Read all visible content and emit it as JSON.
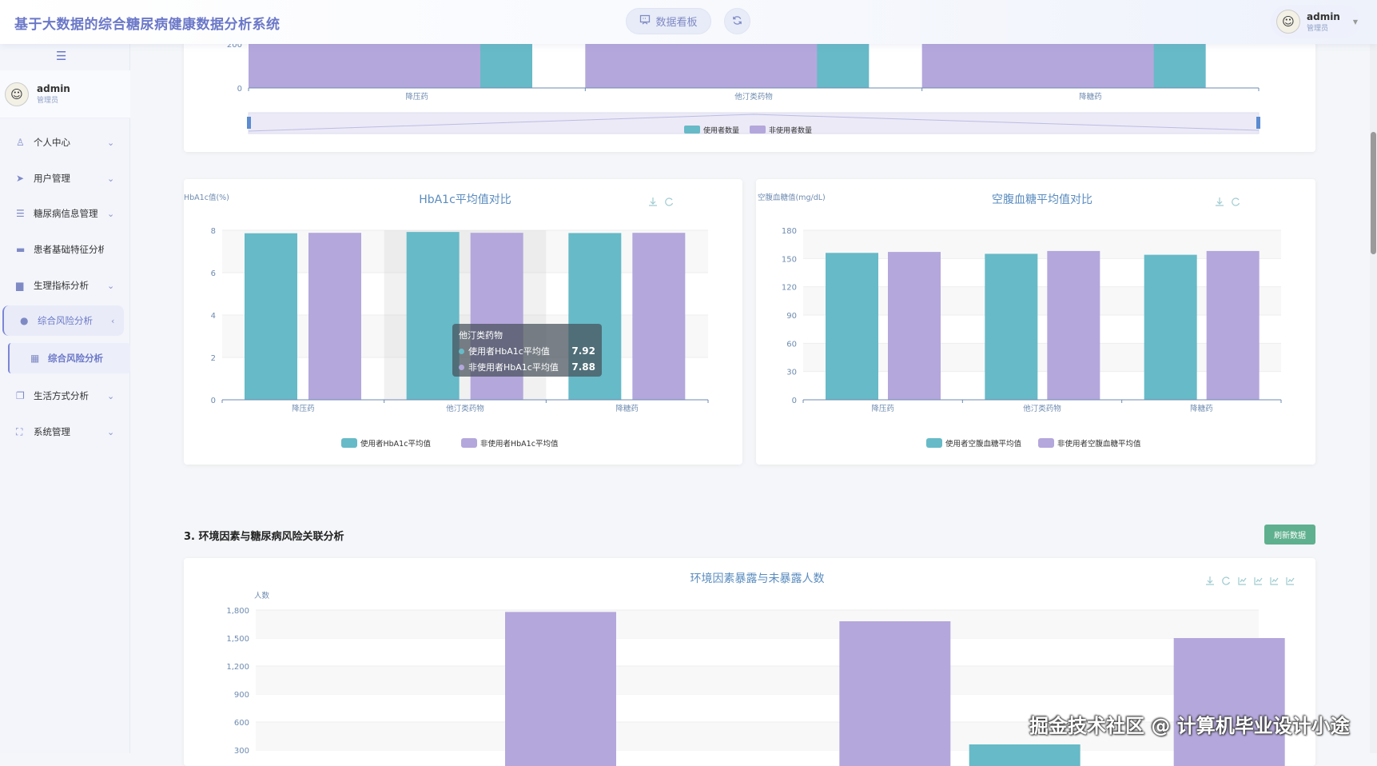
{
  "header": {
    "title": "基于大数据的综合糖尿病健康数据分析系统",
    "dashboard_button": "数据看板",
    "user": {
      "name": "admin",
      "role": "管理员"
    }
  },
  "sidebar": {
    "user": {
      "name": "admin",
      "role": "管理员"
    },
    "items": [
      {
        "label": "个人中心",
        "icon": "user-icon",
        "expandable": true
      },
      {
        "label": "用户管理",
        "icon": "send-icon",
        "expandable": true
      },
      {
        "label": "糖尿病信息管理",
        "icon": "sliders-icon",
        "expandable": true
      },
      {
        "label": "患者基础特征分析",
        "icon": "chat-icon",
        "expandable": false
      },
      {
        "label": "生理指标分析",
        "icon": "monitor-icon",
        "expandable": true
      },
      {
        "label": "综合风险分析",
        "icon": "person-icon",
        "expandable": true,
        "active": true
      },
      {
        "label": "综合风险分析",
        "icon": "grid-icon",
        "sub": true,
        "active": true
      },
      {
        "label": "生活方式分析",
        "icon": "copy-icon",
        "expandable": true
      },
      {
        "label": "系统管理",
        "icon": "fullscreen-icon",
        "expandable": true
      }
    ]
  },
  "section3": {
    "title": "3. 环境因素与糖尿病风险关联分析",
    "refresh_button": "刷新数据"
  },
  "tooltip": {
    "category": "他汀类药物",
    "rows": [
      {
        "label": "使用者HbA1c平均值",
        "value": "7.92"
      },
      {
        "label": "非使用者HbA1c平均值",
        "value": "7.88"
      }
    ]
  },
  "watermark": "掘金技术社区 @ 计算机毕业设计小途",
  "colors": {
    "teal": "#67bac7",
    "purple": "#b4a7dc",
    "accent": "#6b78c8",
    "button_green": "#5fb08e"
  },
  "chart_data": [
    {
      "id": "count",
      "type": "bar",
      "title": "",
      "categories": [
        "降压药",
        "他汀类药物",
        "降糖药"
      ],
      "y_ticks": [
        "0",
        "200"
      ],
      "series": [
        {
          "name": "使用者数量",
          "values": [
            null,
            null,
            null
          ]
        },
        {
          "name": "非使用者数量",
          "values": [
            null,
            null,
            null
          ]
        }
      ],
      "legend": "bottom",
      "datazoom": true
    },
    {
      "id": "hba1c",
      "type": "bar",
      "title": "HbA1c平均值对比",
      "ylabel": "HbA1c值(%)",
      "ylim": [
        0,
        8
      ],
      "y_ticks": [
        "0",
        "2",
        "4",
        "6",
        "8"
      ],
      "categories": [
        "降压药",
        "他汀类药物",
        "降糖药"
      ],
      "series": [
        {
          "name": "使用者HbA1c平均值",
          "values": [
            7.86,
            7.92,
            7.87
          ]
        },
        {
          "name": "非使用者HbA1c平均值",
          "values": [
            7.88,
            7.88,
            7.88
          ]
        }
      ],
      "legend": "bottom",
      "grid": true
    },
    {
      "id": "fbg",
      "type": "bar",
      "title": "空腹血糖平均值对比",
      "ylabel": "空腹血糖值(mg/dL)",
      "ylim": [
        0,
        180
      ],
      "y_ticks": [
        "0",
        "30",
        "60",
        "90",
        "120",
        "150",
        "180"
      ],
      "categories": [
        "降压药",
        "他汀类药物",
        "降糖药"
      ],
      "series": [
        {
          "name": "使用者空腹血糖平均值",
          "values": [
            156,
            155,
            154
          ]
        },
        {
          "name": "非使用者空腹血糖平均值",
          "values": [
            157,
            158,
            158
          ]
        }
      ],
      "legend": "bottom",
      "grid": true
    },
    {
      "id": "env",
      "type": "bar",
      "title": "环境因素暴露与未暴露人数",
      "ylabel": "人数",
      "ylim": [
        0,
        1800
      ],
      "y_ticks": [
        "300",
        "600",
        "900",
        "1,200",
        "1,500",
        "1,800"
      ],
      "series": [
        {
          "values": [
            null,
            null,
            360
          ]
        },
        {
          "values": [
            1780,
            1680,
            1500
          ]
        }
      ],
      "grid": true
    }
  ]
}
